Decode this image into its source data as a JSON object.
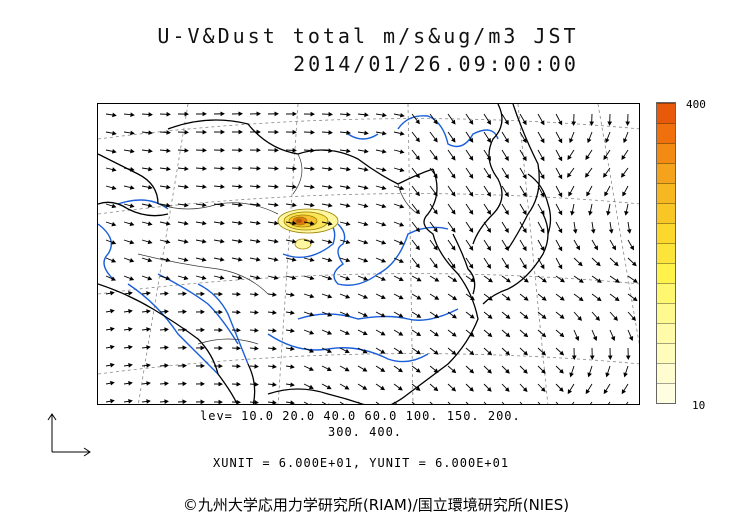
{
  "title": {
    "line1": "U-V&Dust total m/s&ug/m3 JST",
    "line2": "2014/01/26.09:00:00"
  },
  "colorbar": {
    "max_label": "400",
    "min_label": "10",
    "colors": [
      "#e85a0a",
      "#f0700e",
      "#f28a14",
      "#f5a21c",
      "#f7b720",
      "#f9c725",
      "#fcd72c",
      "#fde43a",
      "#fff24a",
      "#fff770",
      "#fffa90",
      "#fffba8",
      "#fffcbc",
      "#fffdd0",
      "#fffee0"
    ]
  },
  "levels": {
    "line1": "lev= 10.0 20.0 40.0 60.0 100. 150. 200.",
    "line2": "300. 400."
  },
  "units": "XUNIT = 6.000E+01, YUNIT = 6.000E+01",
  "credit": "©九州大学応用力学研究所(RIAM)/国立環境研究所(NIES)",
  "map": {
    "coastline_color": "#000000",
    "river_color": "#1a5fd9",
    "arrow_color": "#000000",
    "dust_plume_color": "#c8b020"
  }
}
